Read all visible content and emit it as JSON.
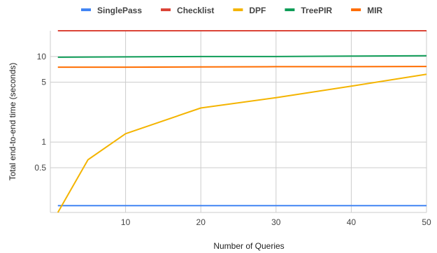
{
  "chart_data": {
    "type": "line",
    "xlabel": "Number of Queries",
    "ylabel": "Total end-to-end time (seconds)",
    "y_scale": "log",
    "xlim": [
      0,
      50
    ],
    "ylim": [
      0.15,
      20
    ],
    "x_ticks": [
      10,
      20,
      30,
      40,
      50
    ],
    "y_ticks": [
      0.5,
      1,
      5,
      10
    ],
    "grid": true,
    "legend_position": "top",
    "series": [
      {
        "name": "SinglePass",
        "color": "#4285f4",
        "x": [
          1,
          50
        ],
        "y": [
          0.18,
          0.18
        ]
      },
      {
        "name": "Checklist",
        "color": "#db4437",
        "x": [
          1,
          50
        ],
        "y": [
          20,
          20
        ]
      },
      {
        "name": "DPF",
        "color": "#f4b400",
        "x": [
          1,
          5,
          10,
          20,
          30,
          40,
          50
        ],
        "y": [
          0.15,
          0.62,
          1.25,
          2.5,
          3.3,
          4.5,
          6.2
        ]
      },
      {
        "name": "TreePIR",
        "color": "#0f9d58",
        "x": [
          1,
          10,
          20,
          30,
          40,
          50
        ],
        "y": [
          9.8,
          9.9,
          10.0,
          10.0,
          10.1,
          10.2
        ]
      },
      {
        "name": "MIR",
        "color": "#ff6d00",
        "x": [
          1,
          10,
          20,
          30,
          40,
          50
        ],
        "y": [
          7.5,
          7.5,
          7.55,
          7.6,
          7.6,
          7.65
        ]
      }
    ]
  }
}
